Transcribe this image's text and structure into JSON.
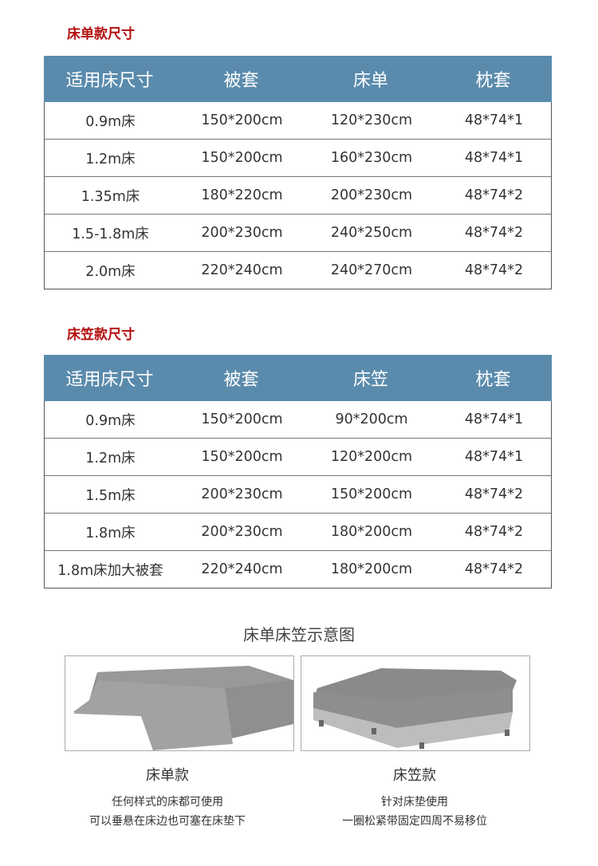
{
  "table1": {
    "title": "床单款尺寸",
    "headers": [
      "适用床尺寸",
      "被套",
      "床单",
      "枕套"
    ],
    "rows": [
      [
        "0.9m床",
        "150*200cm",
        "120*230cm",
        "48*74*1"
      ],
      [
        "1.2m床",
        "150*200cm",
        "160*230cm",
        "48*74*1"
      ],
      [
        "1.35m床",
        "180*220cm",
        "200*230cm",
        "48*74*2"
      ],
      [
        "1.5-1.8m床",
        "200*230cm",
        "240*250cm",
        "48*74*2"
      ],
      [
        "2.0m床",
        "220*240cm",
        "240*270cm",
        "48*74*2"
      ]
    ]
  },
  "table2": {
    "title": "床笠款尺寸",
    "headers": [
      "适用床尺寸",
      "被套",
      "床笠",
      "枕套"
    ],
    "rows": [
      [
        "0.9m床",
        "150*200cm",
        "90*200cm",
        "48*74*1"
      ],
      [
        "1.2m床",
        "150*200cm",
        "120*200cm",
        "48*74*1"
      ],
      [
        "1.5m床",
        "200*230cm",
        "150*200cm",
        "48*74*2"
      ],
      [
        "1.8m床",
        "200*230cm",
        "180*200cm",
        "48*74*2"
      ],
      [
        "1.8m床加大被套",
        "220*240cm",
        "180*200cm",
        "48*74*2"
      ]
    ]
  },
  "diagram": {
    "title": "床单床笠示意图",
    "items": [
      {
        "name": "床单款",
        "desc1": "任何样式的床都可使用",
        "desc2": "可以垂悬在床边也可塞在床垫下"
      },
      {
        "name": "床笠款",
        "desc1": "针对床垫使用",
        "desc2": "一圈松紧带固定四周不易移位"
      }
    ]
  },
  "colors": {
    "header": "#5a8bac",
    "title": "#b40f0f"
  }
}
